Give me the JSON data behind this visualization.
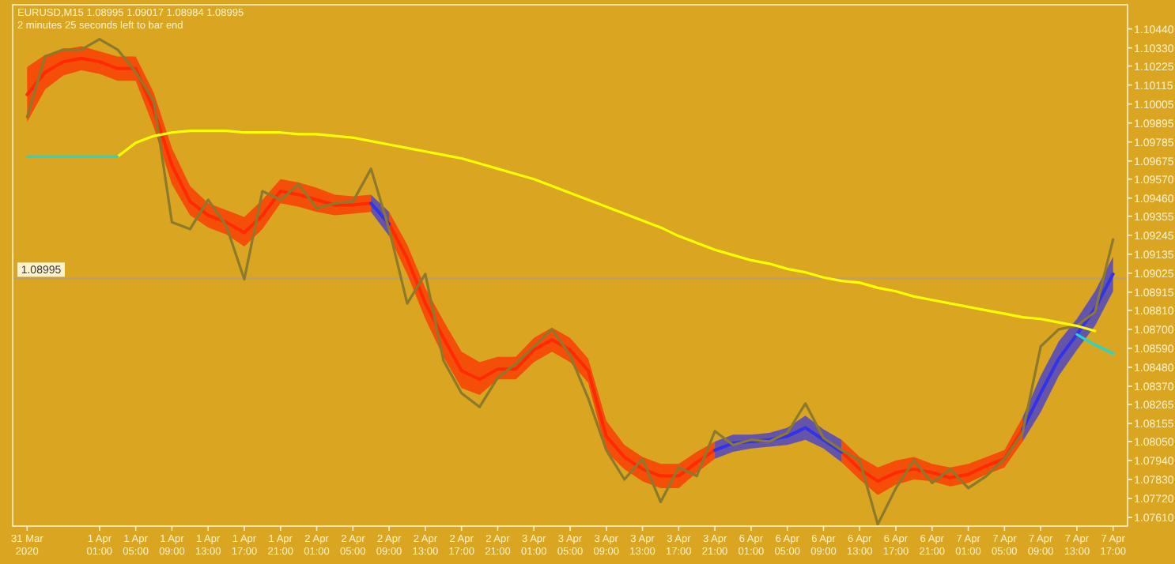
{
  "chart_data": {
    "type": "line",
    "title": "EURUSD,M15  1.08995 1.09017 1.08984 1.08995",
    "subtitle": "2 minutes 25 seconds left to bar end",
    "categories": [
      "31 Mar 2020",
      null,
      null,
      null,
      "1 Apr 01:00",
      null,
      "1 Apr 05:00",
      null,
      "1 Apr 09:00",
      null,
      "1 Apr 13:00",
      null,
      "1 Apr 17:00",
      null,
      "1 Apr 21:00",
      null,
      "2 Apr 01:00",
      null,
      "2 Apr 05:00",
      null,
      "2 Apr 09:00",
      null,
      "2 Apr 13:00",
      null,
      "2 Apr 17:00",
      null,
      "2 Apr 21:00",
      null,
      "3 Apr 01:00",
      null,
      "3 Apr 05:00",
      null,
      "3 Apr 09:00",
      null,
      "3 Apr 13:00",
      null,
      "3 Apr 17:00",
      null,
      "3 Apr 21:00",
      null,
      "6 Apr 01:00",
      null,
      "6 Apr 05:00",
      null,
      "6 Apr 09:00",
      null,
      "6 Apr 13:00",
      null,
      "6 Apr 17:00",
      null,
      "6 Apr 21:00",
      null,
      "7 Apr 01:00",
      null,
      "7 Apr 05:00",
      null,
      "7 Apr 09:00",
      null,
      "7 Apr 13:00",
      null,
      "7 Apr 17:00"
    ],
    "ylim": [
      1.0756,
      1.1058
    ],
    "yticks": [
      {
        "value": 1.1044,
        "label": "1.10440"
      },
      {
        "value": 1.1033,
        "label": "1.10330"
      },
      {
        "value": 1.10225,
        "label": "1.10225"
      },
      {
        "value": 1.10115,
        "label": "1.10115"
      },
      {
        "value": 1.10005,
        "label": "1.10005"
      },
      {
        "value": 1.09895,
        "label": "1.09895"
      },
      {
        "value": 1.09785,
        "label": "1.09785"
      },
      {
        "value": 1.09675,
        "label": "1.09675"
      },
      {
        "value": 1.0957,
        "label": "1.09570"
      },
      {
        "value": 1.0946,
        "label": "1.09460"
      },
      {
        "value": 1.09355,
        "label": "1.09355"
      },
      {
        "value": 1.09245,
        "label": "1.09245"
      },
      {
        "value": 1.09135,
        "label": "1.09135"
      },
      {
        "value": 1.09025,
        "label": "1.09025"
      },
      {
        "value": 1.08915,
        "label": "1.08915"
      },
      {
        "value": 1.0881,
        "label": "1.08810"
      },
      {
        "value": 1.087,
        "label": "1.08700"
      },
      {
        "value": 1.0859,
        "label": "1.08590"
      },
      {
        "value": 1.0848,
        "label": "1.08480"
      },
      {
        "value": 1.0837,
        "label": "1.08370"
      },
      {
        "value": 1.08265,
        "label": "1.08265"
      },
      {
        "value": 1.08155,
        "label": "1.08155"
      },
      {
        "value": 1.0805,
        "label": "1.08050"
      },
      {
        "value": 1.0794,
        "label": "1.07940"
      },
      {
        "value": 1.0783,
        "label": "1.07830"
      },
      {
        "value": 1.0772,
        "label": "1.07720"
      },
      {
        "value": 1.0761,
        "label": "1.07610"
      }
    ],
    "ref_lines": [
      {
        "axis": "y",
        "value": 1.08995,
        "label": "1.08995",
        "color": "#b8a070"
      }
    ],
    "series": [
      {
        "color": "#ff2a00",
        "values": [
          1.1006,
          1.1019,
          1.1025,
          1.1027,
          1.1025,
          1.1021,
          1.1021,
          1.0997,
          1.0965,
          1.0944,
          1.0936,
          1.0932,
          1.0926,
          1.0936,
          1.095,
          1.0948,
          1.0945,
          1.0942,
          1.0942,
          1.0943,
          null,
          null,
          null,
          null,
          null,
          null,
          null,
          null,
          null,
          null,
          null,
          null,
          null,
          null,
          null,
          null,
          null,
          null,
          null,
          null,
          null,
          null,
          null,
          null,
          null,
          1.0799,
          1.0789,
          1.0782,
          1.0787,
          1.0789,
          1.0787,
          1.0784,
          1.0786,
          1.0791,
          1.0795,
          1.0812,
          null,
          null,
          null,
          null,
          null
        ],
        "lower": [
          1.099,
          1.1009,
          1.1017,
          1.102,
          1.1018,
          1.1014,
          1.1014,
          1.0987,
          1.0954,
          1.0936,
          1.0929,
          1.0925,
          1.0918,
          1.0928,
          1.0943,
          1.0941,
          1.0938,
          1.0936,
          1.0937,
          1.0938,
          null,
          null,
          null,
          null,
          null,
          null,
          null,
          null,
          null,
          null,
          null,
          null,
          null,
          null,
          null,
          null,
          null,
          null,
          null,
          null,
          null,
          null,
          null,
          null,
          null,
          1.0793,
          1.0783,
          1.0774,
          1.078,
          1.0783,
          1.0782,
          1.0779,
          1.0781,
          1.0786,
          1.079,
          1.0805,
          null,
          null,
          null,
          null,
          null
        ],
        "upper": [
          1.1022,
          1.1029,
          1.1032,
          1.1034,
          1.1031,
          1.1028,
          1.1028,
          1.1007,
          1.0975,
          1.0953,
          1.0943,
          1.0939,
          1.0935,
          1.0945,
          1.0957,
          1.0955,
          1.0952,
          1.0948,
          1.0947,
          1.0948,
          null,
          null,
          null,
          null,
          null,
          null,
          null,
          null,
          null,
          null,
          null,
          null,
          null,
          null,
          null,
          null,
          null,
          null,
          null,
          null,
          null,
          null,
          null,
          null,
          null,
          1.0806,
          1.0796,
          1.079,
          1.0794,
          1.0796,
          1.0792,
          1.079,
          1.0792,
          1.0796,
          1.08,
          1.0819,
          null,
          null,
          null,
          null,
          null
        ]
      },
      {
        "color": "#ff2a00",
        "values": [
          null,
          null,
          null,
          null,
          null,
          null,
          null,
          null,
          null,
          null,
          null,
          null,
          null,
          null,
          null,
          null,
          null,
          null,
          null,
          null,
          1.0931,
          1.0911,
          1.0885,
          1.0865,
          1.0846,
          1.0841,
          1.0847,
          1.0847,
          1.0858,
          1.0864,
          1.0858,
          1.0846,
          1.0808,
          1.0796,
          1.0789,
          1.0785,
          1.0785,
          1.0793,
          1.08,
          null,
          null,
          null,
          null,
          null,
          null,
          null,
          null,
          null,
          null,
          null,
          null,
          null,
          null,
          null,
          null,
          null,
          null,
          null,
          null,
          null,
          null
        ],
        "lower": [
          null,
          null,
          null,
          null,
          null,
          null,
          null,
          null,
          null,
          null,
          null,
          null,
          null,
          null,
          null,
          null,
          null,
          null,
          null,
          null,
          1.0924,
          1.0902,
          1.0876,
          1.0854,
          1.0836,
          1.0832,
          1.0841,
          1.0841,
          1.0851,
          1.0857,
          1.0851,
          1.0839,
          1.0799,
          1.0789,
          1.0782,
          1.0778,
          1.0778,
          1.0787,
          1.0795,
          null,
          null,
          null,
          null,
          null,
          null,
          null,
          null,
          null,
          null,
          null,
          null,
          null,
          null,
          null,
          null,
          null,
          null,
          null,
          null,
          null,
          null
        ],
        "upper": [
          null,
          null,
          null,
          null,
          null,
          null,
          null,
          null,
          null,
          null,
          null,
          null,
          null,
          null,
          null,
          null,
          null,
          null,
          null,
          null,
          1.0938,
          1.0919,
          1.0894,
          1.0875,
          1.0857,
          1.0851,
          1.0854,
          1.0854,
          1.0865,
          1.0871,
          1.0865,
          1.0853,
          1.0817,
          1.0803,
          1.0796,
          1.0792,
          1.0792,
          1.0799,
          1.0805,
          null,
          null,
          null,
          null,
          null,
          null,
          null,
          null,
          null,
          null,
          null,
          null,
          null,
          null,
          null,
          null,
          null,
          null,
          null,
          null,
          null,
          null
        ]
      },
      {
        "color": "#3232e6",
        "values": [
          null,
          null,
          null,
          null,
          null,
          null,
          null,
          null,
          null,
          null,
          null,
          null,
          null,
          null,
          null,
          null,
          null,
          null,
          null,
          1.0943,
          1.0931,
          null,
          null,
          null,
          null,
          null,
          null,
          null,
          null,
          null,
          null,
          null,
          null,
          null,
          null,
          null,
          null,
          null,
          1.08,
          1.0804,
          1.0805,
          1.0806,
          1.0808,
          1.0813,
          1.0806,
          1.0799,
          null,
          null,
          null,
          null,
          null,
          null,
          null,
          null,
          null,
          1.0812,
          1.0833,
          1.0853,
          1.0867,
          1.0882,
          1.0902
        ],
        "lower": [
          null,
          null,
          null,
          null,
          null,
          null,
          null,
          null,
          null,
          null,
          null,
          null,
          null,
          null,
          null,
          null,
          null,
          null,
          null,
          1.0938,
          1.0924,
          null,
          null,
          null,
          null,
          null,
          null,
          null,
          null,
          null,
          null,
          null,
          null,
          null,
          null,
          null,
          null,
          null,
          1.0795,
          1.0799,
          1.0801,
          1.0802,
          1.0803,
          1.0806,
          1.0801,
          1.0793,
          null,
          null,
          null,
          null,
          null,
          null,
          null,
          null,
          null,
          1.0805,
          1.0822,
          1.0843,
          1.0858,
          1.0872,
          1.0892
        ],
        "upper": [
          null,
          null,
          null,
          null,
          null,
          null,
          null,
          null,
          null,
          null,
          null,
          null,
          null,
          null,
          null,
          null,
          null,
          null,
          null,
          1.0948,
          1.0938,
          null,
          null,
          null,
          null,
          null,
          null,
          null,
          null,
          null,
          null,
          null,
          null,
          null,
          null,
          null,
          null,
          null,
          1.0805,
          1.0809,
          1.0809,
          1.081,
          1.0813,
          1.082,
          1.0812,
          1.0806,
          null,
          null,
          null,
          null,
          null,
          null,
          null,
          null,
          null,
          1.0819,
          1.0843,
          1.0863,
          1.0876,
          1.0892,
          1.0912
        ]
      },
      {
        "color": "#8c7a2c",
        "values": [
          1.0993,
          1.1028,
          1.1032,
          1.1032,
          1.1038,
          1.1032,
          1.1019,
          1.1002,
          1.0932,
          1.0928,
          1.0945,
          1.093,
          1.0899,
          1.095,
          1.0945,
          1.0954,
          1.094,
          1.0943,
          1.0944,
          1.0963,
          1.0928,
          1.0885,
          1.0902,
          1.0852,
          1.0833,
          1.0825,
          1.0842,
          1.085,
          1.086,
          1.087,
          1.0855,
          1.083,
          1.08,
          1.0783,
          1.0795,
          1.077,
          1.079,
          1.0785,
          1.0811,
          1.0803,
          1.0806,
          1.0805,
          1.081,
          1.0827,
          1.0807,
          1.08,
          1.0794,
          1.0757,
          1.0778,
          1.0794,
          1.0781,
          1.0789,
          1.0778,
          1.0785,
          1.0795,
          1.081,
          1.086,
          1.087,
          1.0872,
          1.088,
          1.0922
        ]
      },
      {
        "color": "#ffff00",
        "values": [
          null,
          null,
          null,
          null,
          null,
          1.097,
          1.0978,
          1.0982,
          1.0984,
          1.0985,
          1.0985,
          1.0985,
          1.0984,
          1.0984,
          1.0984,
          1.0983,
          1.0983,
          1.0982,
          1.0981,
          1.0979,
          1.0977,
          1.0975,
          1.0973,
          1.0971,
          1.0969,
          1.0966,
          1.0963,
          1.096,
          1.0957,
          1.0953,
          1.0949,
          1.0945,
          1.0941,
          1.0937,
          1.0933,
          1.0929,
          1.0924,
          1.092,
          1.0916,
          1.0913,
          1.091,
          1.0908,
          1.0905,
          1.0903,
          1.09,
          1.0898,
          1.0897,
          1.0894,
          1.0892,
          1.0889,
          1.0887,
          1.0885,
          1.0883,
          1.0881,
          1.0879,
          1.0877,
          1.0876,
          1.0874,
          1.0872,
          1.0869,
          null
        ]
      },
      {
        "color": "#20d8d0",
        "values": [
          1.097,
          1.097,
          1.097,
          1.097,
          1.097,
          1.097,
          null,
          null,
          null,
          null,
          null,
          null,
          null,
          null,
          null,
          null,
          null,
          null,
          null,
          null,
          null,
          null,
          null,
          null,
          null,
          null,
          null,
          null,
          null,
          null,
          null,
          null,
          null,
          null,
          null,
          null,
          null,
          null,
          null,
          null,
          null,
          null,
          null,
          null,
          null,
          null,
          null,
          null,
          null,
          null,
          null,
          null,
          null,
          null,
          null,
          null,
          null,
          null,
          1.0867,
          1.0861,
          1.0856
        ]
      }
    ]
  }
}
